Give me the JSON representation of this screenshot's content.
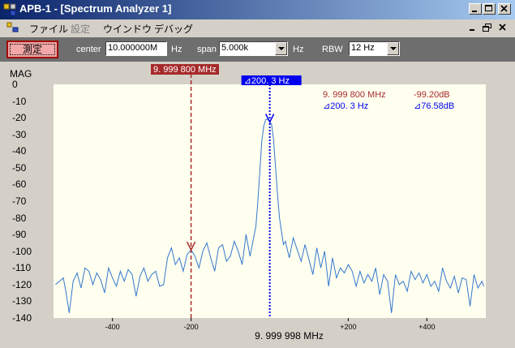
{
  "window": {
    "title": "APB-1 - [Spectrum Analyzer 1]"
  },
  "menu": {
    "items": [
      {
        "label": "ファイル",
        "enabled": true
      },
      {
        "label": "設定",
        "enabled": false
      },
      {
        "label": "ウインドウ",
        "enabled": true
      },
      {
        "label": "デバッグ",
        "enabled": true
      }
    ]
  },
  "toolbar": {
    "measure_label": "測定",
    "center_label": "center",
    "center_value": "10.000000M",
    "center_unit": "Hz",
    "span_label": "span",
    "span_value": "5.000k",
    "span_unit": "Hz",
    "rbw_label": "RBW",
    "rbw_value": "12 Hz"
  },
  "plot": {
    "mag_label": "MAG",
    "y_ticks": [
      "0",
      "-10",
      "-20",
      "-30",
      "-40",
      "-50",
      "-60",
      "-70",
      "-80",
      "-90",
      "-100",
      "-110",
      "-120",
      "-130",
      "-140"
    ],
    "x_ticks": [
      "-400",
      "-200",
      "+200",
      "+400"
    ],
    "x_center_label": "9. 999 998 MHz",
    "marker1_label": "9. 999 800 MHz",
    "marker2_label": "⊿200. 3 Hz",
    "readout": {
      "m1_freq": "9. 999 800 MHz",
      "m1_level": "-99.20dB",
      "m2_freq": "⊿200. 3 Hz",
      "m2_level": "⊿76.58dB"
    },
    "colors": {
      "trace": "#3377cc",
      "marker1": "#a52a2a",
      "marker2": "#0000ee",
      "background": "#fffff0"
    }
  },
  "chart_data": {
    "type": "line",
    "xlabel": "9. 999 998 MHz",
    "ylabel": "MAG",
    "xlim": [
      -550,
      550
    ],
    "ylim": [
      -140,
      0
    ],
    "y_ticks": [
      0,
      -10,
      -20,
      -30,
      -40,
      -50,
      -60,
      -70,
      -80,
      -90,
      -100,
      -110,
      -120,
      -130,
      -140
    ],
    "x_ticks": [
      -400,
      -200,
      200,
      400
    ],
    "x_tick_labels": [
      "-400",
      "-200",
      "+200",
      "+400"
    ],
    "series": [
      {
        "x": [
          -545,
          -535,
          -525,
          -518,
          -510,
          -500,
          -490,
          -480,
          -470,
          -460,
          -450,
          -440,
          -430,
          -420,
          -410,
          -400,
          -390,
          -380,
          -370,
          -360,
          -350,
          -340,
          -330,
          -320,
          -310,
          -300,
          -290,
          -280,
          -270,
          -260,
          -250,
          -240,
          -230,
          -220,
          -210,
          -200,
          -190,
          -180,
          -170,
          -160,
          -150,
          -140,
          -130,
          -120,
          -110,
          -100,
          -90,
          -80,
          -70,
          -60,
          -50,
          -40,
          -35,
          -30,
          -25,
          -20,
          -15,
          -10,
          -5,
          0,
          5,
          10,
          15,
          20,
          25,
          30,
          35,
          40,
          50,
          60,
          70,
          80,
          90,
          100,
          110,
          120,
          130,
          140,
          150,
          160,
          170,
          180,
          190,
          200,
          210,
          220,
          230,
          240,
          250,
          260,
          270,
          280,
          290,
          300,
          310,
          320,
          330,
          340,
          350,
          360,
          370,
          380,
          390,
          400,
          410,
          420,
          430,
          440,
          450,
          460,
          470,
          480,
          490,
          500,
          510,
          520,
          530,
          540,
          545
        ],
        "values": [
          -120,
          -118,
          -116,
          -125,
          -137,
          -118,
          -113,
          -122,
          -110,
          -112,
          -120,
          -113,
          -117,
          -125,
          -110,
          -116,
          -121,
          -112,
          -118,
          -111,
          -114,
          -127,
          -115,
          -110,
          -118,
          -114,
          -112,
          -121,
          -120,
          -104,
          -98,
          -108,
          -104,
          -112,
          -102,
          -99,
          -103,
          -110,
          -100,
          -95,
          -104,
          -112,
          -98,
          -96,
          -106,
          -103,
          -94,
          -100,
          -108,
          -90,
          -103,
          -91,
          -85,
          -70,
          -52,
          -34,
          -25,
          -21,
          -21,
          -22,
          -24,
          -33,
          -50,
          -66,
          -80,
          -88,
          -96,
          -94,
          -104,
          -92,
          -99,
          -106,
          -96,
          -105,
          -114,
          -98,
          -110,
          -100,
          -121,
          -104,
          -116,
          -110,
          -113,
          -108,
          -112,
          -121,
          -112,
          -119,
          -114,
          -118,
          -110,
          -126,
          -114,
          -118,
          -137,
          -114,
          -120,
          -118,
          -124,
          -112,
          -117,
          -113,
          -119,
          -114,
          -121,
          -118,
          -124,
          -110,
          -118,
          -122,
          -115,
          -125,
          -116,
          -117,
          -133,
          -114,
          -122,
          -118,
          -121
        ]
      }
    ],
    "markers": [
      {
        "name": "9. 999 800 MHz",
        "x": -200,
        "y": -99.2
      },
      {
        "name": "⊿200. 3 Hz",
        "x": 0.3,
        "y": -22.6
      }
    ]
  }
}
